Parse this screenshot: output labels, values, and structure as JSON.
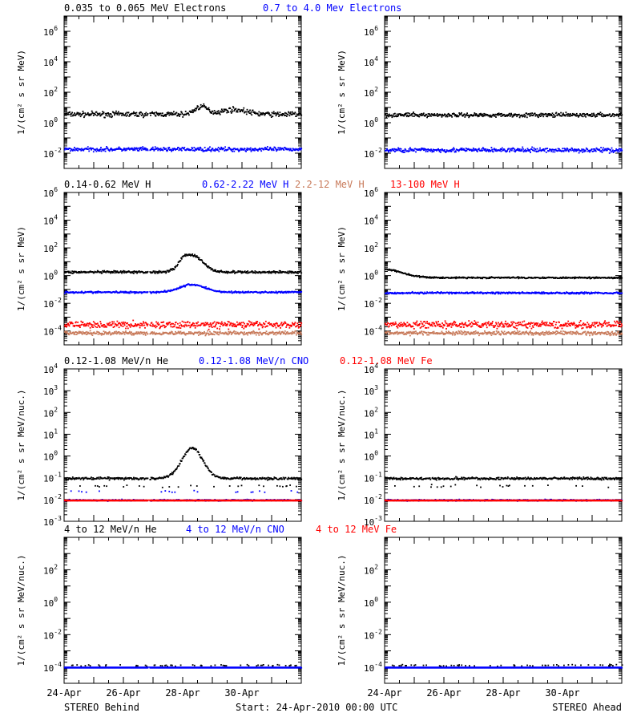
{
  "colors": {
    "black": "#000000",
    "blue": "#0000ff",
    "tan": "#c87a5a",
    "red": "#ff0000"
  },
  "footer": {
    "left": "STEREO Behind",
    "center": "Start: 24-Apr-2010 00:00 UTC",
    "right": "STEREO Ahead"
  },
  "chart_data": [
    {
      "type": "scatter",
      "scale": "log",
      "ylim_exp": [
        -3,
        7
      ],
      "ytick_exps": [
        -2,
        0,
        2,
        4,
        6
      ],
      "ylabel": "1/(cm² s sr MeV)",
      "legend": [
        {
          "text": "0.035 to 0.065 MeV Electrons",
          "color": "black"
        },
        {
          "text": "0.7 to 4.0 Mev Electrons",
          "color": "blue"
        }
      ],
      "panels": {
        "behind": {
          "series": [
            {
              "color": "black",
              "log_level": 0.6,
              "noise": 0.15,
              "bumps": [
                {
                  "day": 4.6,
                  "amp": 0.5,
                  "width": 0.3
                },
                {
                  "day": 5.7,
                  "amp": 0.3,
                  "width": 0.6
                }
              ]
            },
            {
              "color": "blue",
              "log_level": -1.7,
              "noise": 0.12
            }
          ]
        },
        "ahead": {
          "series": [
            {
              "color": "black",
              "log_level": 0.55,
              "noise": 0.12
            },
            {
              "color": "blue",
              "log_level": -1.75,
              "noise": 0.13
            }
          ]
        }
      }
    },
    {
      "type": "scatter",
      "scale": "log",
      "ylim_exp": [
        -5,
        6
      ],
      "ytick_exps": [
        -4,
        -2,
        0,
        2,
        4,
        6
      ],
      "ylabel": "1/(cm² s sr MeV)",
      "legend": [
        {
          "text": "0.14-0.62 MeV H",
          "color": "black"
        },
        {
          "text": "0.62-2.22 MeV H",
          "color": "blue"
        },
        {
          "text": "2.2-12 MeV H",
          "color": "tan"
        },
        {
          "text": "13-100 MeV H",
          "color": "red"
        }
      ],
      "panels": {
        "behind": {
          "series": [
            {
              "color": "black",
              "log_level": 0.3,
              "noise": 0.08,
              "bumps": [
                {
                  "day": 4.3,
                  "amp": 1.2,
                  "width": 0.5
                },
                {
                  "day": 4.0,
                  "amp": 0.3,
                  "width": 0.2
                }
              ]
            },
            {
              "color": "blue",
              "log_level": -1.15,
              "noise": 0.06,
              "bumps": [
                {
                  "day": 4.3,
                  "amp": 0.55,
                  "width": 0.6
                }
              ]
            },
            {
              "color": "tan",
              "log_level": -4.1,
              "noise": 0.12
            },
            {
              "color": "red",
              "log_level": -3.5,
              "noise": 0.22
            }
          ]
        },
        "ahead": {
          "series": [
            {
              "color": "black",
              "log_level": -0.1,
              "noise": 0.05,
              "bumps": [
                {
                  "day": 0.0,
                  "amp": 0.6,
                  "width": 0.8
                }
              ]
            },
            {
              "color": "blue",
              "log_level": -1.2,
              "noise": 0.06
            },
            {
              "color": "tan",
              "log_level": -4.1,
              "noise": 0.12
            },
            {
              "color": "red",
              "log_level": -3.5,
              "noise": 0.22
            }
          ]
        }
      }
    },
    {
      "type": "scatter",
      "scale": "log",
      "ylim_exp": [
        -3,
        4
      ],
      "ytick_exps": [
        -3,
        -2,
        -1,
        0,
        1,
        2,
        3,
        4
      ],
      "ylabel": "1/(cm² s sr MeV/nuc.)",
      "legend": [
        {
          "text": "0.12-1.08 MeV/n He",
          "color": "black"
        },
        {
          "text": "0.12-1.08 MeV/n CNO",
          "color": "blue"
        },
        {
          "text": "0.12-1.08 MeV Fe",
          "color": "red"
        }
      ],
      "panels": {
        "behind": {
          "series": [
            {
              "color": "black",
              "log_level": -1.0,
              "noise": 0.05,
              "floor": -1.35,
              "bumps": [
                {
                  "day": 4.3,
                  "amp": 1.4,
                  "width": 0.5
                }
              ]
            },
            {
              "color": "blue",
              "log_level": -2.0,
              "noise": 0.03,
              "floor": -1.6
            },
            {
              "color": "red",
              "log_level": -2.02,
              "noise": 0.0
            }
          ]
        },
        "ahead": {
          "series": [
            {
              "color": "black",
              "log_level": -1.0,
              "noise": 0.05,
              "floor": -1.35
            },
            {
              "color": "blue",
              "log_level": -2.0,
              "noise": 0.03
            },
            {
              "color": "red",
              "log_level": -2.02,
              "noise": 0.0
            }
          ]
        }
      }
    },
    {
      "type": "scatter",
      "scale": "log",
      "ylim_exp": [
        -5,
        4
      ],
      "ytick_exps": [
        -4,
        -2,
        0,
        2
      ],
      "ylabel": "1/(cm² s sr MeV/nuc.)",
      "legend": [
        {
          "text": "4 to 12 MeV/n He",
          "color": "black"
        },
        {
          "text": "4 to 12 MeV/n CNO",
          "color": "blue"
        },
        {
          "text": "4 to 12 MeV Fe",
          "color": "red"
        }
      ],
      "panels": {
        "behind": {
          "series": [
            {
              "color": "black",
              "log_level": -3.85,
              "noise": 0.05,
              "sparse": true
            },
            {
              "color": "blue",
              "log_level": -4.0,
              "noise": 0.0
            }
          ]
        },
        "ahead": {
          "series": [
            {
              "color": "black",
              "log_level": -3.85,
              "noise": 0.05,
              "sparse": true
            },
            {
              "color": "blue",
              "log_level": -4.0,
              "noise": 0.0
            }
          ]
        }
      }
    }
  ],
  "x_axis": {
    "start": "24-Apr-2010 00:00 UTC",
    "days_span": 8,
    "tick_labels": [
      "24-Apr",
      "26-Apr",
      "28-Apr",
      "30-Apr"
    ]
  }
}
